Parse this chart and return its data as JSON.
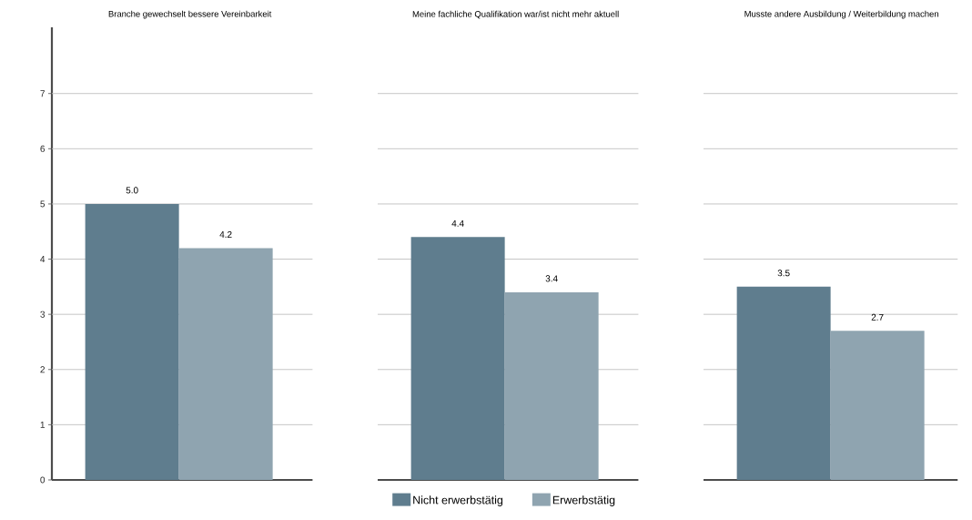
{
  "chart_data": {
    "type": "bar",
    "categories": [
      "Branche gewechselt bessere Vereinbarkeit",
      "Meine fachliche Qualifikation war/ist nicht mehr aktuell",
      "Musste andere Ausbildung / Weiterbildung machen"
    ],
    "series": [
      {
        "name": "Nicht erwerbstätig",
        "color": "#5f7d8e",
        "values": [
          5.0,
          4.4,
          3.5
        ],
        "value_labels": [
          "5.0",
          "4.4",
          "3.5"
        ]
      },
      {
        "name": "Erwerbstätig",
        "color": "#8fa4b0",
        "values": [
          4.2,
          3.4,
          2.7
        ],
        "value_labels": [
          "4.2",
          "3.4",
          "2.7"
        ]
      }
    ],
    "ylim": [
      0,
      8.2
    ],
    "yticks": [
      0,
      1,
      2,
      3,
      4,
      5,
      6,
      7
    ],
    "grid": "y",
    "legend": "bottom"
  }
}
